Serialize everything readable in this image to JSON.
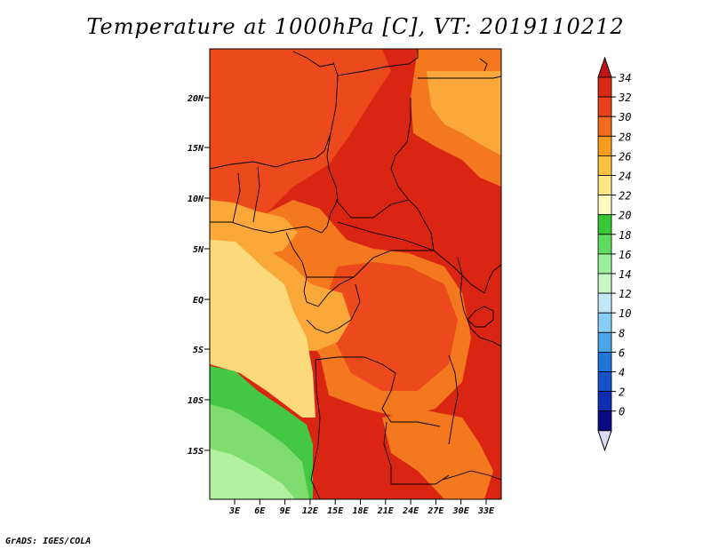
{
  "title": "Temperature at 1000hPa [C], VT: 2019110212",
  "credit": "GrADS: IGES/COLA",
  "lat_labels": [
    "20N",
    "15N",
    "10N",
    "5N",
    "EQ",
    "5S",
    "10S",
    "15S"
  ],
  "lon_labels": [
    "3E",
    "6E",
    "9E",
    "12E",
    "15E",
    "18E",
    "21E",
    "24E",
    "27E",
    "30E",
    "33E"
  ],
  "colorbar": {
    "labels": [
      "34",
      "32",
      "30",
      "28",
      "26",
      "24",
      "22",
      "20",
      "18",
      "16",
      "14",
      "12",
      "10",
      "8",
      "6",
      "4",
      "2",
      "0"
    ],
    "colors": [
      "#d82a14",
      "#e8421c",
      "#f26a1e",
      "#f89b1e",
      "#fac040",
      "#fde686",
      "#fdfbc0",
      "#38c838",
      "#5fdc5f",
      "#9cf09c",
      "#c7f7c7",
      "#c2e8f7",
      "#88cdf3",
      "#4aa6e8",
      "#2275d8",
      "#1653c8",
      "#0e2eb2",
      "#0a0a82"
    ],
    "over_color": "#c01414",
    "under_color": "#dcdcf8"
  },
  "map_colors": {
    "hot": "#d92512",
    "red_orange": "#ec4a1c",
    "orange": "#f4781e",
    "light_orange": "#faa83a",
    "pale_yellow": "#fcd97a",
    "green": "#44c844",
    "light_green": "#7fdc6f",
    "pale_green": "#b2f0a0"
  }
}
